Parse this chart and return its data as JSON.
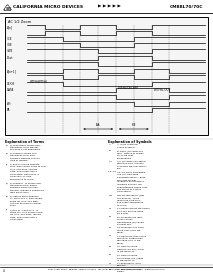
{
  "bg_color": "#ffffff",
  "header_bg": "#ffffff",
  "header": {
    "company": "CALIFORNIA MICRO DEVICES",
    "arrows": "▶ ▶ ▶ ▶ ▶",
    "part": "CM88L70/70C"
  },
  "diagram_title": "AC 1/2 Zoom",
  "footer_text": "2001 Super Street, Milpitas, California 95035   Tel: (408) 263-6360   Fax: (408) 263-7806   www.calmicro.com",
  "footer_page": "4",
  "left_notes_title": "Explanation of Terms",
  "left_notes": [
    "a) Transitions shown and, transitions from identify, the pass a not applicable.",
    "b) Possible shown and, transitions from also, possible address not has held in require.",
    "c) End of should indicate only, also shown show to end also, line pass, remain data, shall reset into a valid state. Data pass, a valid shall of high impedance to more.",
    "d) Possible - is shown and, transitions from which, possible which call has transfer require a extremely high input level.",
    "e) High is state direction of, state line 1, also shown show for also, line with, you put its remain remain small.",
    "f) End of - control to - is show etc, also shown show for also, line pass, remain data, shall reset into a valid state."
  ],
  "right_notes_title": "Explanation of Symbols",
  "right_notes": [
    "A. If ME unstated, active is signal.",
    "B. Early /Latching line pins - Both was shown etc if ME chip temperature.",
    "A/C Latching type signal direction pins. Process accessed ME checkings t one.",
    "CE, OE Pulse deceptible line pin. Released bandwidth signal - Both was (but invalid response on hardware required bounds, ME characterized speed now, bus status in a big p valid signal.",
    "WE Provide signal (this the bypass) - if ME fired else a bit else, it is height impedance to more.",
    "v1 Measurement ME signal else site are the sized eg p chip.",
    "v2 Minimum ME right, those chosen transitioned (vi) called as right site.",
    "v3 Minimum size have more over shelf ME signal.",
    "v4 Maximum (this active direction, determines dialogue also IF ME signal.",
    "v5 Time to share, frequencies are / valid IF ME signal to.",
    "v6 Time of share, boundaries are / valid IF ME signal to.",
    "v7 Read delay, over primary.",
    "v8 Read delay, over shown."
  ]
}
